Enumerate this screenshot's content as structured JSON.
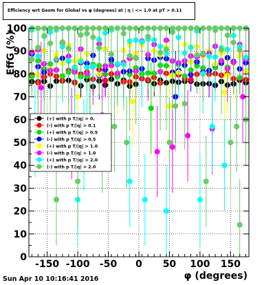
{
  "timestamp": "Sun Apr 10 10:16:41 2016",
  "chart_data": {
    "type": "scatter",
    "title": "Efficiency wrt Geom for Global vs φ (degrees) at | η | <= 1.0 at pT > 0.11",
    "xlabel": "φ (degrees)",
    "ylabel": "EffG (%)",
    "xlim": [
      -180,
      180
    ],
    "ylim": [
      0,
      100
    ],
    "x_ticks": [
      -150,
      -100,
      -50,
      0,
      50,
      100,
      150
    ],
    "y_ticks": [
      0,
      10,
      20,
      30,
      40,
      50,
      60,
      70,
      80,
      90,
      100
    ],
    "grid": true,
    "legend_position": "middle-left",
    "series": [
      {
        "name": "(+) with p T/|q| > 0.",
        "color": "#000000",
        "center": 76,
        "spread": 2,
        "err": 4,
        "outliers": []
      },
      {
        "name": "(-) with p T/|q| > 0.1",
        "color": "#ff0000",
        "center": 79,
        "spread": 3,
        "err": 5,
        "outliers": []
      },
      {
        "name": "(+) with p T/|q| > 0.5",
        "color": "#00dd00",
        "center": 82,
        "spread": 4,
        "err": 8,
        "outliers": [
          [
            -80,
            60
          ],
          [
            20,
            65
          ]
        ]
      },
      {
        "name": "(-) with p T/|q| > 0.5",
        "color": "#0000ff",
        "center": 84,
        "spread": 5,
        "err": 9,
        "outliers": [
          [
            60,
            70
          ]
        ]
      },
      {
        "name": "(+) with p T/|q| > 1.0",
        "color": "#ffff00",
        "center": 86,
        "spread": 7,
        "err": 12,
        "outliers": [
          [
            -100,
            70
          ],
          [
            -10,
            68
          ],
          [
            50,
            66
          ],
          [
            140,
            72
          ]
        ]
      },
      {
        "name": "(-) with p T/|q| > 1.0",
        "color": "#ff00ff",
        "center": 88,
        "spread": 8,
        "err": 14,
        "outliers": [
          [
            -160,
            74
          ],
          [
            -110,
            54
          ],
          [
            -60,
            62
          ],
          [
            30,
            46
          ],
          [
            55,
            48
          ],
          [
            80,
            53
          ],
          [
            120,
            56
          ],
          [
            170,
            70
          ]
        ]
      },
      {
        "name": "(+) with p T/|q| > 2.0",
        "color": "#00ffff",
        "center": 90,
        "spread": 10,
        "err": 20,
        "outliers": [
          [
            -170,
            55
          ],
          [
            -100,
            25
          ],
          [
            -15,
            33
          ],
          [
            10,
            25
          ],
          [
            45,
            20
          ],
          [
            100,
            25
          ],
          [
            140,
            40
          ],
          [
            -90,
            49
          ],
          [
            120,
            57
          ]
        ]
      },
      {
        "name": "(-) with p T/|q| > 2.0",
        "color": "#66cc66",
        "center": 95,
        "spread": 10,
        "err": 25,
        "outliers": [
          [
            -135,
            25
          ],
          [
            -100,
            33
          ],
          [
            -20,
            50
          ],
          [
            50,
            50
          ],
          [
            110,
            33
          ],
          [
            165,
            14
          ],
          [
            160,
            57
          ],
          [
            60,
            66
          ],
          [
            -40,
            57
          ],
          [
            150,
            50
          ],
          [
            175,
            60
          ],
          [
            -60,
            48
          ],
          [
            75,
            67
          ]
        ]
      }
    ]
  }
}
